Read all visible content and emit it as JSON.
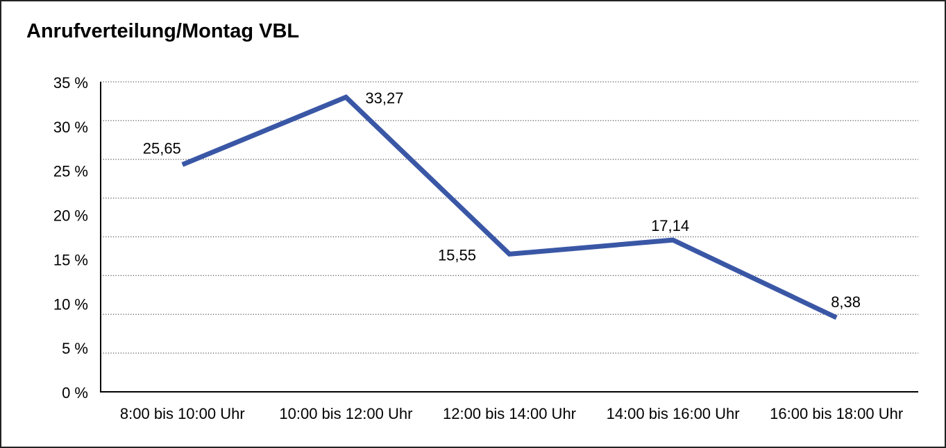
{
  "title": "Anrufverteilung/Montag VBL",
  "colors": {
    "line": "#3a57a6",
    "grid": "#4f4f4f",
    "axis": "#000000",
    "text": "#000000",
    "background": "#ffffff",
    "border": "#222222"
  },
  "chart_data": {
    "type": "line",
    "title": "Anrufverteilung/Montag VBL",
    "categories": [
      "8:00 bis 10:00 Uhr",
      "10:00 bis 12:00 Uhr",
      "12:00 bis 14:00 Uhr",
      "14:00 bis 16:00 Uhr",
      "16:00 bis 18:00 Uhr"
    ],
    "series": [
      {
        "name": "Anrufverteilung Montag VBL",
        "values": [
          25.65,
          33.27,
          15.55,
          17.14,
          8.38
        ]
      }
    ],
    "point_labels": [
      "25,65",
      "33,27",
      "15,55",
      "17,14",
      "8,38"
    ],
    "y_tick_labels": [
      "35 %",
      "30 %",
      "25 %",
      "20 %",
      "15 %",
      "10 %",
      "5 %",
      "0 %"
    ],
    "ylim": [
      0,
      35
    ],
    "xlabel": "",
    "ylabel": "",
    "grid": "horizontal-dotted",
    "legend": "none"
  }
}
